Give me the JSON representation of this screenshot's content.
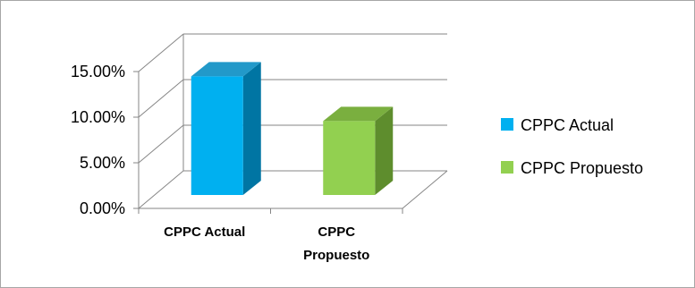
{
  "chart_data": {
    "type": "bar",
    "categories": [
      "CPPC Actual",
      "CPPC Propuesto"
    ],
    "category_label_lines": [
      [
        "CPPC Actual"
      ],
      [
        "CPPC",
        "Propuesto"
      ]
    ],
    "values": [
      13.0,
      8.1
    ],
    "value_unit": "%",
    "ylim": [
      0,
      15
    ],
    "yticks": [
      "0.00%",
      "5.00%",
      "10.00%",
      "15.00%"
    ],
    "grid": true,
    "legend_position": "right",
    "legend": [
      "CPPC Actual",
      "CPPC Propuesto"
    ],
    "colors": {
      "CPPC Actual": {
        "front": "#00b0f0",
        "side": "#0075a3",
        "top": "#2299c9"
      },
      "CPPC Propuesto": {
        "front": "#92d050",
        "side": "#5e8d2d",
        "top": "#7aaf3f"
      }
    },
    "title": "",
    "xlabel": "",
    "ylabel": ""
  }
}
